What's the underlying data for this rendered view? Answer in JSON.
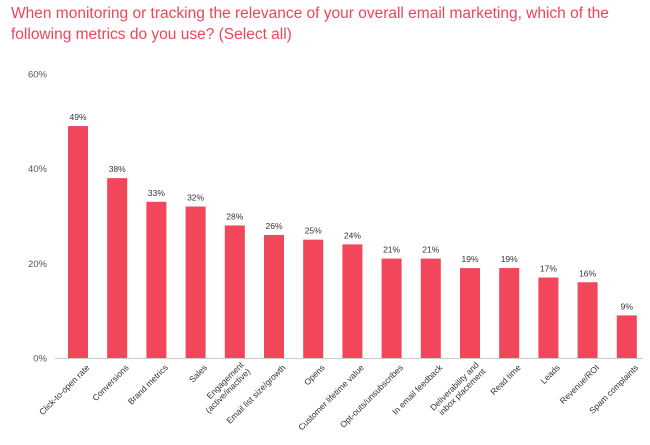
{
  "title": "When monitoring or tracking the relevance of your overall email marketing, which of the following metrics do you use? (Select all)",
  "colors": {
    "bar": "#f2465a",
    "title": "#f0445a",
    "axis": "#cccccc"
  },
  "chart_data": {
    "type": "bar",
    "title": "When monitoring or tracking the relevance of your overall email marketing, which of the following metrics do you use? (Select all)",
    "categories": [
      [
        "Click-to-open rate"
      ],
      [
        "Conversions"
      ],
      [
        "Brand metrics"
      ],
      [
        "Sales"
      ],
      [
        "Engagement",
        "(active/inactive)"
      ],
      [
        "Email list size/growth"
      ],
      [
        "Opens"
      ],
      [
        "Customer lifetime value"
      ],
      [
        "Opt-outs/unsubscribes"
      ],
      [
        "In email feedback"
      ],
      [
        "Deliverability and",
        "inbox placement"
      ],
      [
        "Read time"
      ],
      [
        "Leads"
      ],
      [
        "Revenue/ROI"
      ],
      [
        "Spam complaints"
      ]
    ],
    "values": [
      49,
      38,
      33,
      32,
      28,
      26,
      25,
      24,
      21,
      21,
      19,
      19,
      17,
      16,
      9
    ],
    "value_labels": [
      "49%",
      "38%",
      "33%",
      "32%",
      "28%",
      "26%",
      "25%",
      "24%",
      "21%",
      "21%",
      "19%",
      "19%",
      "17%",
      "16%",
      "9%"
    ],
    "yticks": [
      0,
      20,
      40,
      60
    ],
    "ytick_labels": [
      "0%",
      "20%",
      "40%",
      "60%"
    ],
    "ylim": [
      0,
      60
    ],
    "grid": false,
    "legend": "none"
  }
}
